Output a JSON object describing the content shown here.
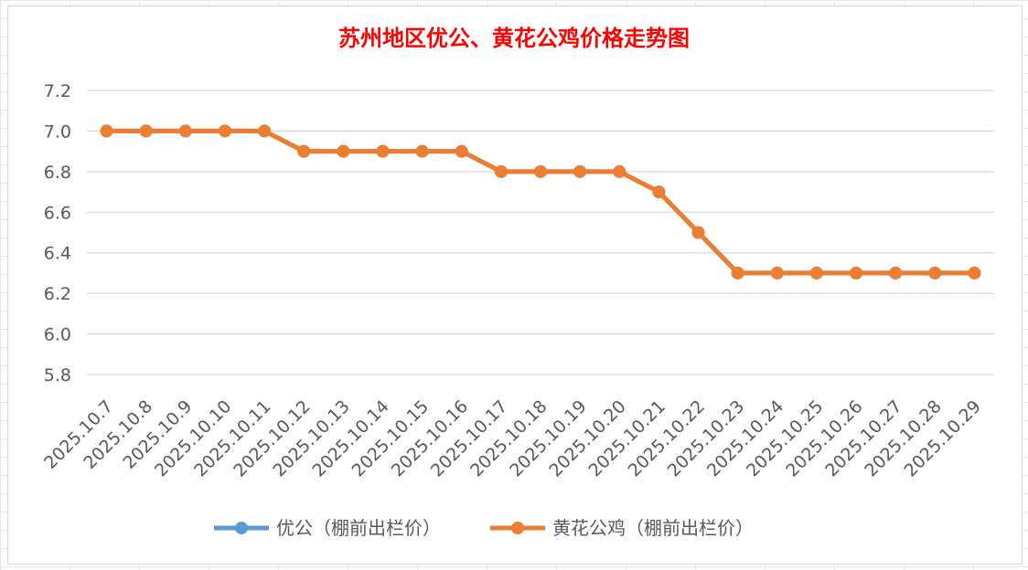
{
  "chart_data": {
    "type": "line",
    "title": "苏州地区优公、黄花公鸡价格走势图",
    "xlabel": "",
    "ylabel": "",
    "categories": [
      "2025.10.7",
      "2025.10.8",
      "2025.10.9",
      "2025.10.10",
      "2025.10.11",
      "2025.10.12",
      "2025.10.13",
      "2025.10.14",
      "2025.10.15",
      "2025.10.16",
      "2025.10.17",
      "2025.10.18",
      "2025.10.19",
      "2025.10.20",
      "2025.10.21",
      "2025.10.22",
      "2025.10.23",
      "2025.10.24",
      "2025.10.25",
      "2025.10.26",
      "2025.10.27",
      "2025.10.28",
      "2025.10.29"
    ],
    "series": [
      {
        "name": "优公（棚前出栏价）",
        "color": "#5b9bd5",
        "values": [
          7.0,
          7.0,
          7.0,
          7.0,
          7.0,
          6.9,
          6.9,
          6.9,
          6.9,
          6.9,
          6.8,
          6.8,
          6.8,
          6.8,
          6.7,
          6.5,
          6.3,
          6.3,
          6.3,
          6.3,
          6.3,
          6.3,
          6.3
        ]
      },
      {
        "name": "黄花公鸡（棚前出栏价）",
        "color": "#ed7d31",
        "values": [
          7.0,
          7.0,
          7.0,
          7.0,
          7.0,
          6.9,
          6.9,
          6.9,
          6.9,
          6.9,
          6.8,
          6.8,
          6.8,
          6.8,
          6.7,
          6.5,
          6.3,
          6.3,
          6.3,
          6.3,
          6.3,
          6.3,
          6.3
        ]
      }
    ],
    "ylim": [
      5.8,
      7.2
    ],
    "yticks": [
      "5.8",
      "6.0",
      "6.2",
      "6.4",
      "6.6",
      "6.8",
      "7.0",
      "7.2"
    ],
    "grid": true,
    "legend_position": "bottom"
  }
}
